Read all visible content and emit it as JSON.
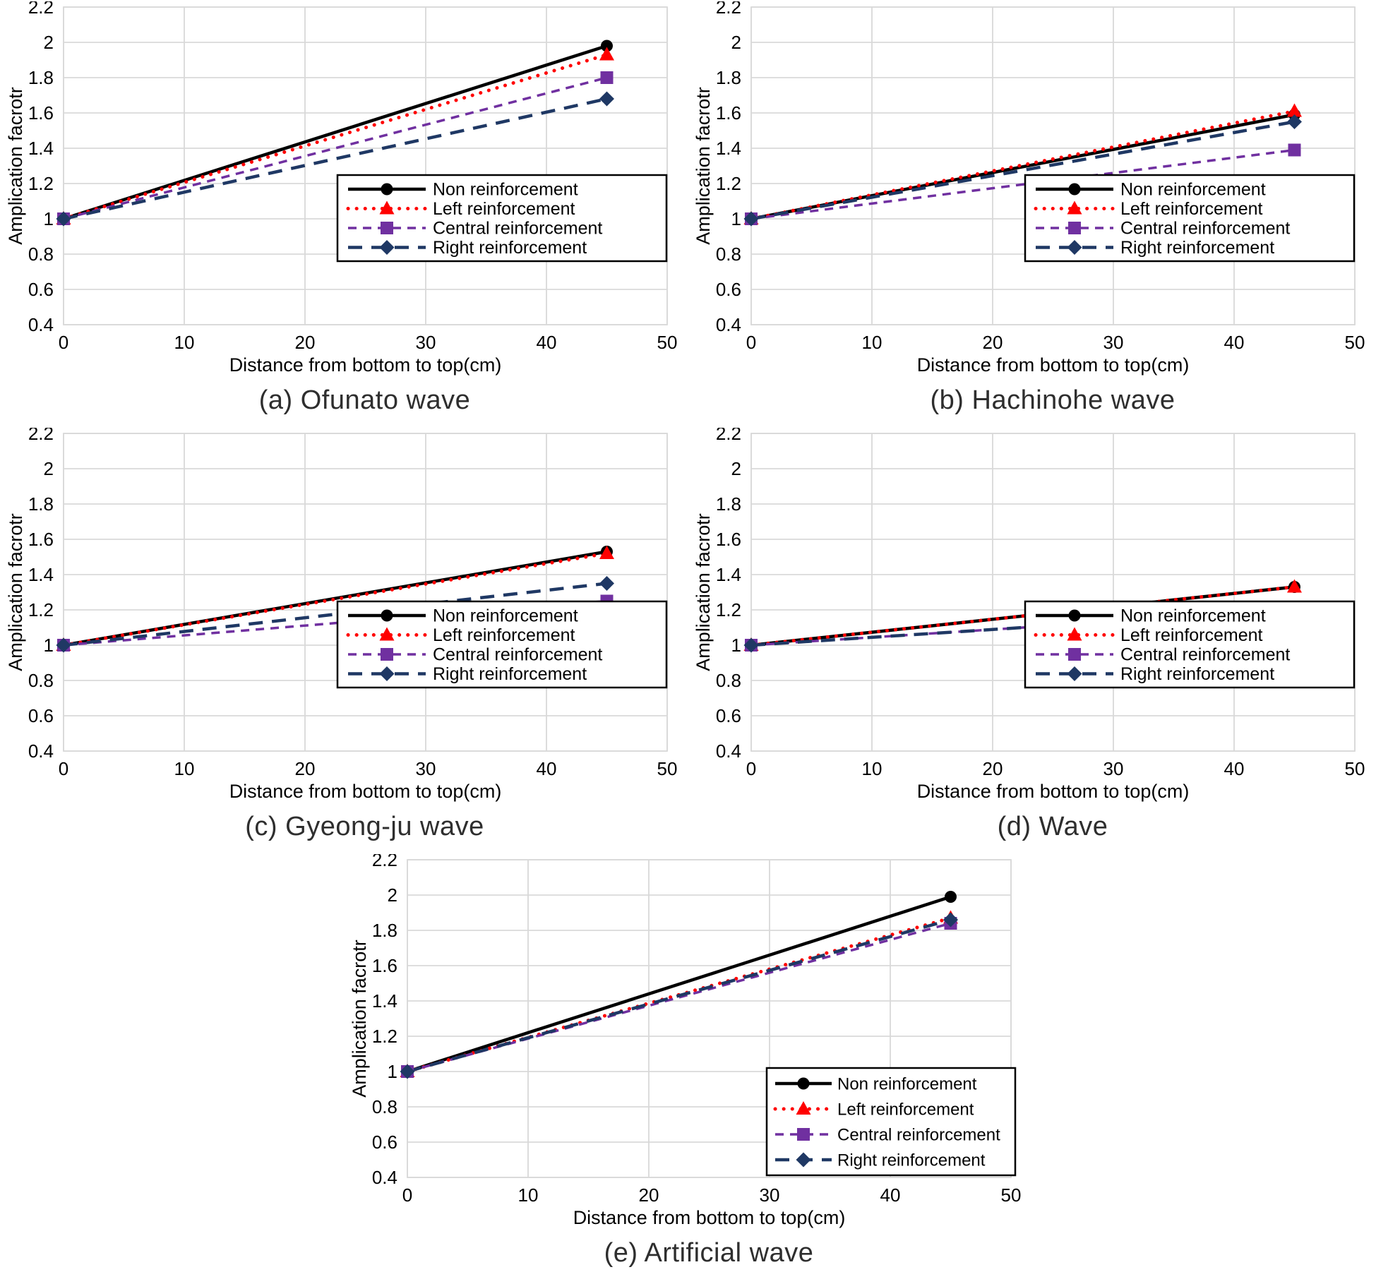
{
  "figure": {
    "y_axis_label": "Amplication facrotr",
    "x_axis_label": "Distance from bottom to top(cm)",
    "y_ticks": [
      "2.2",
      "2",
      "1.8",
      "1.6",
      "1.4",
      "1.2",
      "1",
      "0.8",
      "0.6",
      "0.4"
    ],
    "x_ticks": [
      "0",
      "10",
      "20",
      "30",
      "40",
      "50"
    ],
    "legend_labels": [
      "Non reinforcement",
      "Left reinforcement",
      "Central reinforcement",
      "Right reinforcement"
    ],
    "colors": {
      "non": "#000000",
      "left": "#FF0000",
      "central": "#7030A0",
      "right": "#1F3864",
      "grid": "#D9D9D9",
      "text": "#000000"
    }
  },
  "chart_data": [
    {
      "id": "a",
      "type": "line",
      "title": "(a) Ofunato wave",
      "xlabel": "Distance from bottom to top(cm)",
      "ylabel": "Amplication facrotr",
      "xlim": [
        0,
        50
      ],
      "ylim": [
        0.4,
        2.2
      ],
      "grid": true,
      "legend_position": "lower-right",
      "x": [
        0,
        45
      ],
      "series": [
        {
          "name": "Non reinforcement",
          "values": [
            1.0,
            1.98
          ]
        },
        {
          "name": "Left reinforcement",
          "values": [
            1.0,
            1.93
          ]
        },
        {
          "name": "Central reinforcement",
          "values": [
            1.0,
            1.8
          ]
        },
        {
          "name": "Right reinforcement",
          "values": [
            1.0,
            1.68
          ]
        }
      ]
    },
    {
      "id": "b",
      "type": "line",
      "title": "(b) Hachinohe wave",
      "xlabel": "Distance from bottom to top(cm)",
      "ylabel": "Amplication facrotr",
      "xlim": [
        0,
        50
      ],
      "ylim": [
        0.4,
        2.2
      ],
      "grid": true,
      "legend_position": "lower-right",
      "x": [
        0,
        45
      ],
      "series": [
        {
          "name": "Non reinforcement",
          "values": [
            1.0,
            1.59
          ]
        },
        {
          "name": "Left reinforcement",
          "values": [
            1.0,
            1.61
          ]
        },
        {
          "name": "Central reinforcement",
          "values": [
            1.0,
            1.39
          ]
        },
        {
          "name": "Right reinforcement",
          "values": [
            1.0,
            1.55
          ]
        }
      ]
    },
    {
      "id": "c",
      "type": "line",
      "title": "(c) Gyeong-ju wave",
      "xlabel": "Distance from bottom to top(cm)",
      "ylabel": "Amplication facrotr",
      "xlim": [
        0,
        50
      ],
      "ylim": [
        0.4,
        2.2
      ],
      "grid": true,
      "legend_position": "lower-right",
      "x": [
        0,
        45
      ],
      "series": [
        {
          "name": "Non reinforcement",
          "values": [
            1.0,
            1.53
          ]
        },
        {
          "name": "Left reinforcement",
          "values": [
            1.0,
            1.52
          ]
        },
        {
          "name": "Central reinforcement",
          "values": [
            1.0,
            1.25
          ]
        },
        {
          "name": "Right reinforcement",
          "values": [
            1.0,
            1.35
          ]
        }
      ]
    },
    {
      "id": "d",
      "type": "line",
      "title": "(d) Wave",
      "xlabel": "Distance from bottom to top(cm)",
      "ylabel": "Amplication facrotr",
      "xlim": [
        0,
        50
      ],
      "ylim": [
        0.4,
        2.2
      ],
      "grid": true,
      "legend_position": "lower-right",
      "x": [
        0,
        45
      ],
      "series": [
        {
          "name": "Non reinforcement",
          "values": [
            1.0,
            1.33
          ]
        },
        {
          "name": "Left reinforcement",
          "values": [
            1.0,
            1.33
          ]
        },
        {
          "name": "Central reinforcement",
          "values": [
            1.0,
            1.2
          ]
        },
        {
          "name": "Right reinforcement",
          "values": [
            1.0,
            1.2
          ]
        }
      ]
    },
    {
      "id": "e",
      "type": "line",
      "title": "(e) Artificial wave",
      "xlabel": "Distance from bottom to top(cm)",
      "ylabel": "Amplication facrotr",
      "xlim": [
        0,
        50
      ],
      "ylim": [
        0.4,
        2.2
      ],
      "grid": true,
      "legend_position": "lower-right",
      "x": [
        0,
        45
      ],
      "series": [
        {
          "name": "Non reinforcement",
          "values": [
            1.0,
            1.99
          ]
        },
        {
          "name": "Left reinforcement",
          "values": [
            1.0,
            1.87
          ]
        },
        {
          "name": "Central reinforcement",
          "values": [
            1.0,
            1.84
          ]
        },
        {
          "name": "Right reinforcement",
          "values": [
            1.0,
            1.86
          ]
        }
      ]
    }
  ]
}
